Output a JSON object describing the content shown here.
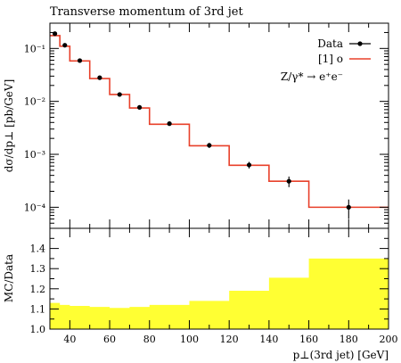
{
  "chart_data": [
    {
      "type": "line",
      "title": "Transverse momentum of 3rd jet",
      "ylabel": "dσ/dp⊥ [pb/GeV]",
      "xlabel": "",
      "yscale": "log",
      "xlim": [
        30,
        200
      ],
      "ylim": [
        4e-05,
        0.3
      ],
      "y_ticks": [
        {
          "value": 0.1,
          "label": "10⁻¹"
        },
        {
          "value": 0.01,
          "label": "10⁻²"
        },
        {
          "value": 0.001,
          "label": "10⁻³"
        },
        {
          "value": 0.0001,
          "label": "10⁻⁴"
        }
      ],
      "legend_position": "top-right",
      "series": [
        {
          "name": "Data",
          "color": "#000000",
          "style": "points-with-errorbars",
          "x": [
            32.5,
            37.5,
            45,
            55,
            65,
            75,
            90,
            110,
            130,
            150,
            180
          ],
          "y": [
            0.19,
            0.115,
            0.059,
            0.028,
            0.0135,
            0.0077,
            0.0038,
            0.00148,
            0.00063,
            0.00031,
            0.0001
          ],
          "yerr": [
            0.012,
            0.008,
            0.004,
            0.0018,
            0.0009,
            0.0006,
            0.0003,
            0.00016,
            9e-05,
            7e-05,
            4e-05
          ]
        },
        {
          "name": "[1] o",
          "color": "#e8402a",
          "style": "histogram",
          "bin_edges": [
            30,
            35,
            40,
            50,
            60,
            70,
            80,
            100,
            120,
            140,
            160,
            200
          ],
          "values": [
            0.175,
            0.11,
            0.058,
            0.027,
            0.0135,
            0.0075,
            0.0037,
            0.00145,
            0.00062,
            0.00031,
            0.0001
          ]
        }
      ],
      "annotation": "Z/γ* → e⁺e⁻"
    },
    {
      "type": "area",
      "ylabel": "MC/Data",
      "xlabel": "p⊥(3rd jet) [GeV]",
      "xlim": [
        30,
        200
      ],
      "ylim": [
        1.0,
        1.5
      ],
      "x_ticks": [
        40,
        60,
        80,
        100,
        120,
        140,
        160,
        180,
        200
      ],
      "y_ticks": [
        1.0,
        1.1,
        1.2,
        1.3,
        1.4
      ],
      "y_tick_labels": [
        "1.0",
        "1.1",
        "1.2",
        "1.3",
        "1.4"
      ],
      "series": [
        {
          "name": "",
          "color": "#ffff33",
          "style": "histogram-band",
          "bin_edges": [
            30,
            35,
            40,
            50,
            60,
            70,
            80,
            100,
            120,
            140,
            160,
            200
          ],
          "values": [
            1.13,
            1.12,
            1.115,
            1.11,
            1.105,
            1.11,
            1.12,
            1.14,
            1.19,
            1.255,
            1.35
          ]
        }
      ]
    }
  ]
}
